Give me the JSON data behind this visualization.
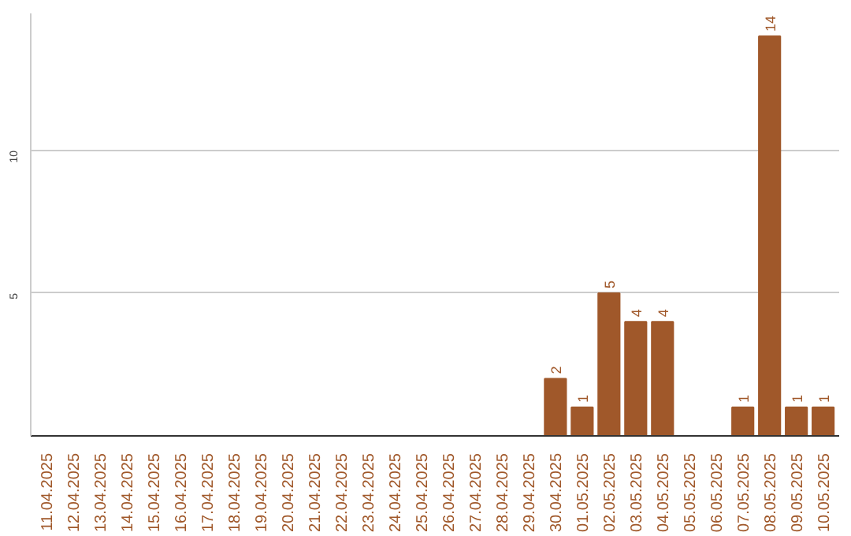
{
  "chart_data": {
    "type": "bar",
    "categories": [
      "11.04.2025",
      "12.04.2025",
      "13.04.2025",
      "14.04.2025",
      "15.04.2025",
      "16.04.2025",
      "17.04.2025",
      "18.04.2025",
      "19.04.2025",
      "20.04.2025",
      "21.04.2025",
      "22.04.2025",
      "23.04.2025",
      "24.04.2025",
      "25.04.2025",
      "26.04.2025",
      "27.04.2025",
      "28.04.2025",
      "29.04.2025",
      "30.04.2025",
      "01.05.2025",
      "02.05.2025",
      "03.05.2025",
      "04.05.2025",
      "05.05.2025",
      "06.05.2025",
      "07.05.2025",
      "08.05.2025",
      "09.05.2025",
      "10.05.2025"
    ],
    "values": [
      0,
      0,
      0,
      0,
      0,
      0,
      0,
      0,
      0,
      0,
      0,
      0,
      0,
      0,
      0,
      0,
      0,
      0,
      0,
      2,
      1,
      5,
      4,
      4,
      0,
      0,
      1,
      14,
      1,
      1
    ],
    "value_labels": [
      null,
      null,
      null,
      null,
      null,
      null,
      null,
      null,
      null,
      null,
      null,
      null,
      null,
      null,
      null,
      null,
      null,
      null,
      null,
      "2",
      "1",
      "5",
      "4",
      "4",
      null,
      null,
      "1",
      "14",
      "1",
      "1"
    ],
    "color": "#a0582a",
    "ylim": [
      0,
      14.8
    ],
    "yticks": [
      5,
      10
    ],
    "grid": "y"
  }
}
